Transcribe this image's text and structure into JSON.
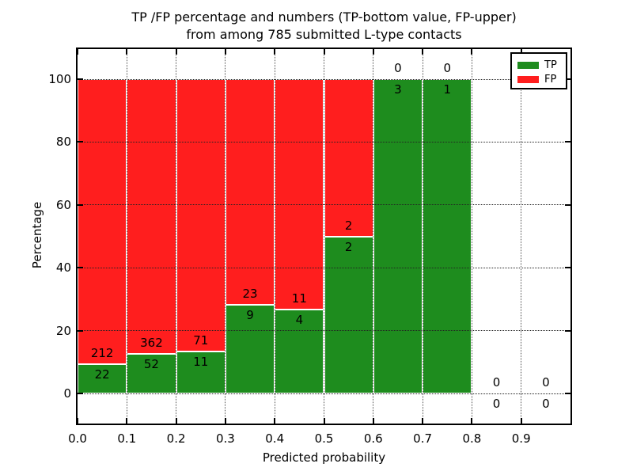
{
  "chart_data": {
    "type": "bar",
    "stacked": true,
    "percent_stacked": true,
    "title": "TP /FP percentage and numbers (TP-bottom value, FP-upper) from among 785 submitted L-type contacts",
    "title_lines": [
      "TP /FP percentage and numbers (TP-bottom value, FP-upper)",
      "from among 785 submitted L-type contacts"
    ],
    "xlabel": "Predicted probability",
    "ylabel": "Percentage",
    "total_contacts": 785,
    "bin_width": 0.1,
    "bin_starts": [
      0.0,
      0.1,
      0.2,
      0.3,
      0.4,
      0.5,
      0.6,
      0.7,
      0.8,
      0.9
    ],
    "x_ticks": [
      "0.0",
      "0.1",
      "0.2",
      "0.3",
      "0.4",
      "0.5",
      "0.6",
      "0.7",
      "0.8",
      "0.9"
    ],
    "y_ticks": [
      "0",
      "20",
      "40",
      "60",
      "80",
      "100"
    ],
    "y_tick_values": [
      0,
      20,
      40,
      60,
      80,
      100
    ],
    "xlim": [
      0.0,
      1.0
    ],
    "ylim": [
      0,
      100
    ],
    "grid": true,
    "legend_position": "upper right",
    "series": [
      {
        "name": "TP",
        "color": "#1e8c1e",
        "values": [
          22,
          52,
          11,
          9,
          4,
          2,
          3,
          1,
          0,
          0
        ]
      },
      {
        "name": "FP",
        "color": "#ff1e1e",
        "values": [
          212,
          362,
          71,
          23,
          11,
          2,
          0,
          0,
          0,
          0
        ]
      }
    ]
  }
}
